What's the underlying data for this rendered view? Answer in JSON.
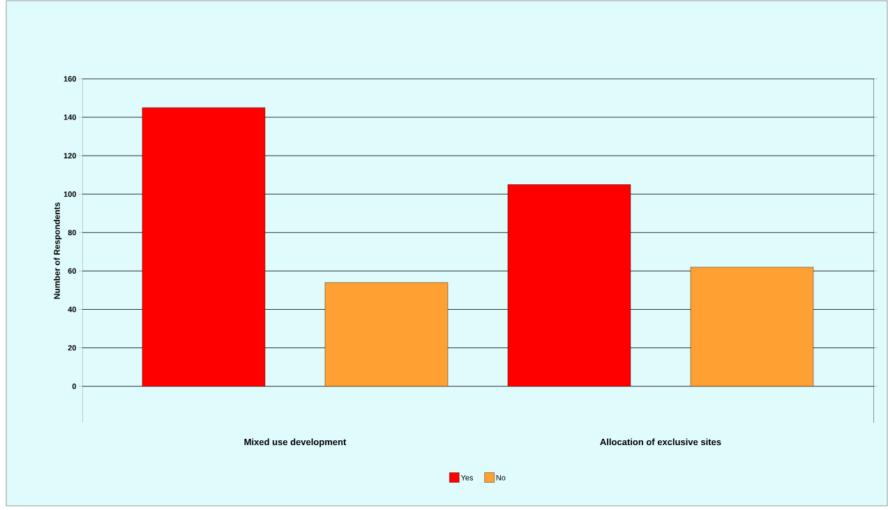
{
  "chart_data": {
    "type": "bar",
    "categories": [
      "Mixed use development",
      "Allocation of exclusive sites"
    ],
    "ylabel": "Number of Respondents",
    "series": [
      {
        "name": "Yes",
        "color": "#ff0000",
        "values": [
          145,
          105
        ]
      },
      {
        "name": "No",
        "color": "#ffa033",
        "values": [
          54,
          62
        ]
      }
    ],
    "ylim": [
      -19,
      160
    ],
    "yticks": [
      0,
      20,
      40,
      60,
      80,
      100,
      120,
      140,
      160
    ],
    "grid": "y",
    "legend": "bottom"
  }
}
